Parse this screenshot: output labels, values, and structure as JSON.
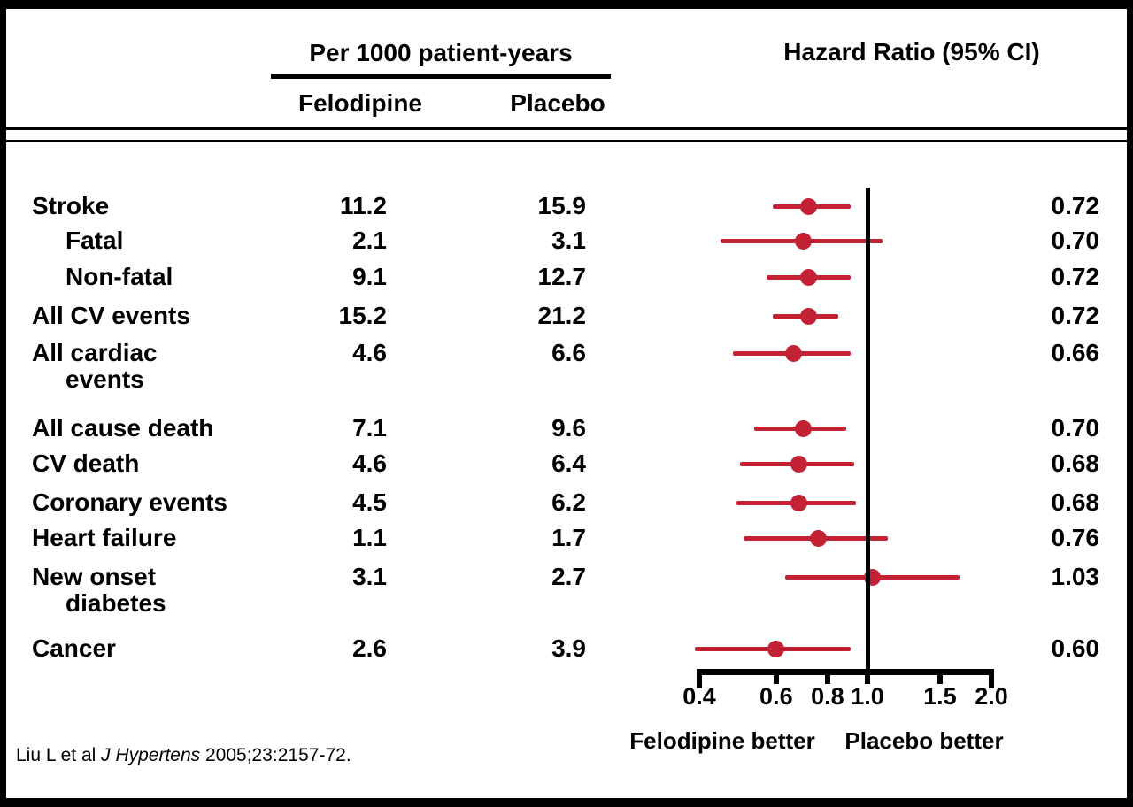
{
  "figure": {
    "citation": {
      "prefix": "Liu L et al ",
      "journal": "J Hypertens",
      "suffix": " 2005;23:2157-72."
    }
  },
  "chart_data": {
    "type": "forest",
    "title_left": "Per 1000 patient-years",
    "columns": {
      "felodipine": "Felodipine",
      "placebo": "Placebo"
    },
    "title_right": "Hazard Ratio (95% CI)",
    "x_scale": "log",
    "x_ticks": [
      0.4,
      0.6,
      0.8,
      1.0,
      1.5,
      2.0
    ],
    "x_tick_labels": [
      "0.4",
      "0.6",
      "0.8",
      "1.0",
      "1.5",
      "2.0"
    ],
    "x_range": [
      0.4,
      2.0
    ],
    "reference_line": 1.0,
    "better_left": "Felodipine better",
    "better_right": "Placebo better",
    "marker_color": "#c32134",
    "axis_color": "#000000",
    "rows": [
      {
        "label": "Stroke",
        "label2": "",
        "indent": false,
        "felodipine": "11.2",
        "placebo": "15.9",
        "hr_label": "0.72",
        "hr": 0.72,
        "lo": 0.59,
        "hi": 0.91
      },
      {
        "label": "Fatal",
        "label2": "",
        "indent": true,
        "felodipine": "2.1",
        "placebo": "3.1",
        "hr_label": "0.70",
        "hr": 0.7,
        "lo": 0.44,
        "hi": 1.09
      },
      {
        "label": "Non-fatal",
        "label2": "",
        "indent": true,
        "felodipine": "9.1",
        "placebo": "12.7",
        "hr_label": "0.72",
        "hr": 0.72,
        "lo": 0.57,
        "hi": 0.91
      },
      {
        "label": "All CV events",
        "label2": "",
        "indent": false,
        "felodipine": "15.2",
        "placebo": "21.2",
        "hr_label": "0.72",
        "hr": 0.72,
        "lo": 0.59,
        "hi": 0.85
      },
      {
        "label": "All cardiac",
        "label2": "events",
        "indent": false,
        "felodipine": "4.6",
        "placebo": "6.6",
        "hr_label": "0.66",
        "hr": 0.66,
        "lo": 0.47,
        "hi": 0.91
      },
      {
        "label": "All cause death",
        "label2": "",
        "indent": false,
        "felodipine": "7.1",
        "placebo": "9.6",
        "hr_label": "0.70",
        "hr": 0.7,
        "lo": 0.53,
        "hi": 0.89
      },
      {
        "label": "CV death",
        "label2": "",
        "indent": false,
        "felodipine": "4.6",
        "placebo": "6.4",
        "hr_label": "0.68",
        "hr": 0.68,
        "lo": 0.49,
        "hi": 0.93
      },
      {
        "label": "Coronary events",
        "label2": "",
        "indent": false,
        "felodipine": "4.5",
        "placebo": "6.2",
        "hr_label": "0.68",
        "hr": 0.68,
        "lo": 0.48,
        "hi": 0.94
      },
      {
        "label": "Heart failure",
        "label2": "",
        "indent": false,
        "felodipine": "1.1",
        "placebo": "1.7",
        "hr_label": "0.76",
        "hr": 0.76,
        "lo": 0.5,
        "hi": 1.12
      },
      {
        "label": "New onset",
        "label2": "diabetes",
        "indent": false,
        "felodipine": "3.1",
        "placebo": "2.7",
        "hr_label": "1.03",
        "hr": 1.03,
        "lo": 0.63,
        "hi": 1.67
      },
      {
        "label": "Cancer",
        "label2": "",
        "indent": false,
        "felodipine": "2.6",
        "placebo": "3.9",
        "hr_label": "0.60",
        "hr": 0.6,
        "lo": 0.38,
        "hi": 0.91
      }
    ],
    "layout_hints": {
      "row_y": [
        233,
        272,
        313,
        357,
        399,
        484,
        524,
        568,
        608,
        652,
        733
      ],
      "legend": "none",
      "grid": "off"
    }
  }
}
